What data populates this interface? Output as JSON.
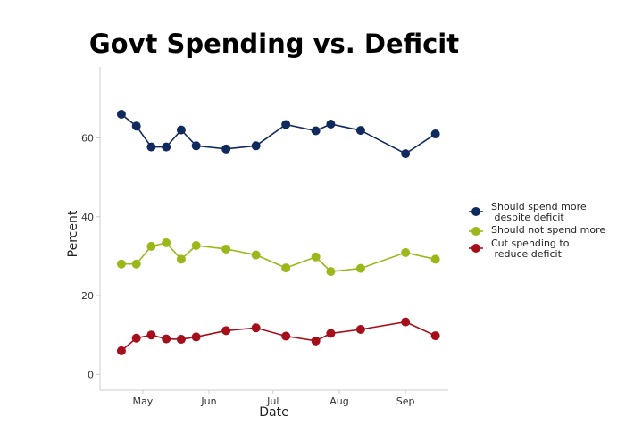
{
  "chart_data": {
    "type": "line",
    "title": "Govt Spending vs. Deficit",
    "xlabel": "Date",
    "ylabel": "Percent",
    "x_tick_labels": [
      "May",
      "Jun",
      "Jul",
      "Aug",
      "Sep"
    ],
    "y_ticks": [
      0,
      20,
      40,
      60
    ],
    "ylim": [
      -4,
      78
    ],
    "xlim": [
      "2019-04-11",
      "2019-09-21"
    ],
    "grid": false,
    "legend_position": "right",
    "x": [
      "2019-04-21",
      "2019-04-28",
      "2019-05-05",
      "2019-05-12",
      "2019-05-19",
      "2019-05-26",
      "2019-06-09",
      "2019-06-23",
      "2019-07-07",
      "2019-07-21",
      "2019-07-28",
      "2019-08-11",
      "2019-09-01",
      "2019-09-15"
    ],
    "series": [
      {
        "name": "Should spend more\n despite deficit",
        "color": "#10295e",
        "values": [
          66,
          63,
          57.7,
          57.7,
          62,
          58,
          57.2,
          58,
          63.4,
          61.8,
          63.5,
          61.9,
          56,
          61
        ]
      },
      {
        "name": "Should not spend more",
        "color": "#9ab81a",
        "values": [
          28,
          28,
          32.5,
          33.4,
          29.2,
          32.7,
          31.8,
          30.3,
          27,
          29.8,
          26.1,
          26.9,
          30.9,
          29.2
        ]
      },
      {
        "name": "Cut spending to\n reduce deficit",
        "color": "#a50f1a",
        "values": [
          6,
          9.2,
          10,
          9,
          8.9,
          9.5,
          11.1,
          11.8,
          9.7,
          8.5,
          10.4,
          11.4,
          13.3,
          9.8
        ]
      }
    ]
  }
}
